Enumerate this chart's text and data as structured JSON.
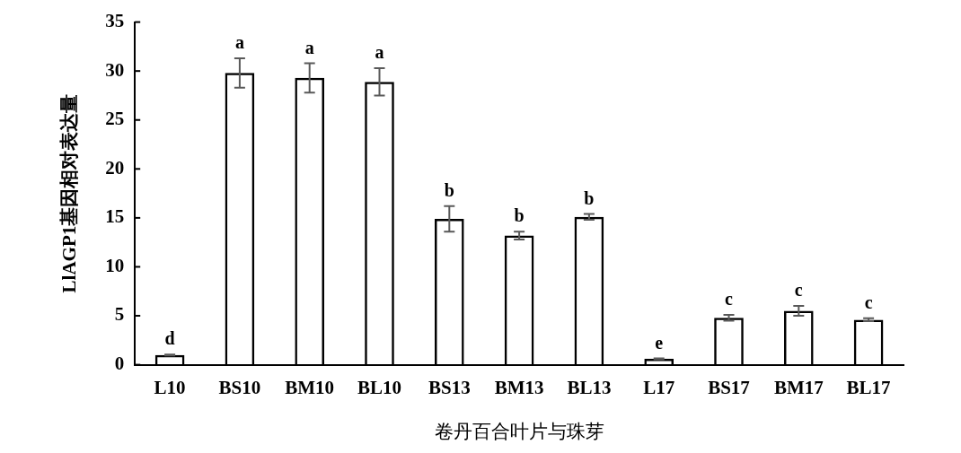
{
  "chart_data": {
    "type": "bar",
    "xlabel": "卷丹百合叶片与珠芽",
    "ylabel": "LlAGP1基因相对表达量",
    "categories": [
      "L10",
      "BS10",
      "BM10",
      "BL10",
      "BS13",
      "BM13",
      "BL13",
      "L17",
      "BS17",
      "BM17",
      "BL17"
    ],
    "values": [
      1.0,
      29.8,
      29.3,
      28.9,
      14.9,
      13.2,
      15.1,
      0.6,
      4.8,
      5.5,
      4.6
    ],
    "errors": [
      0.05,
      1.5,
      1.5,
      1.4,
      1.3,
      0.4,
      0.3,
      0.05,
      0.3,
      0.5,
      0.15
    ],
    "color": "#000000",
    "ylim": [
      0,
      35
    ],
    "yticks": [
      0,
      5,
      10,
      15,
      20,
      25,
      30,
      35
    ],
    "grid": false,
    "legend": false,
    "annotations": [
      {
        "text": "d",
        "x": "L10",
        "y": 1.0
      },
      {
        "text": "a",
        "x": "BS10",
        "y": 29.8
      },
      {
        "text": "a",
        "x": "BM10",
        "y": 29.3
      },
      {
        "text": "a",
        "x": "BL10",
        "y": 28.9
      },
      {
        "text": "b",
        "x": "BS13",
        "y": 14.9
      },
      {
        "text": "b",
        "x": "BM13",
        "y": 13.2
      },
      {
        "text": "b",
        "x": "BL13",
        "y": 15.1
      },
      {
        "text": "e",
        "x": "L17",
        "y": 0.6
      },
      {
        "text": "c",
        "x": "BS17",
        "y": 4.8
      },
      {
        "text": "c",
        "x": "BM17",
        "y": 5.5
      },
      {
        "text": "c",
        "x": "BL17",
        "y": 4.6
      }
    ]
  }
}
